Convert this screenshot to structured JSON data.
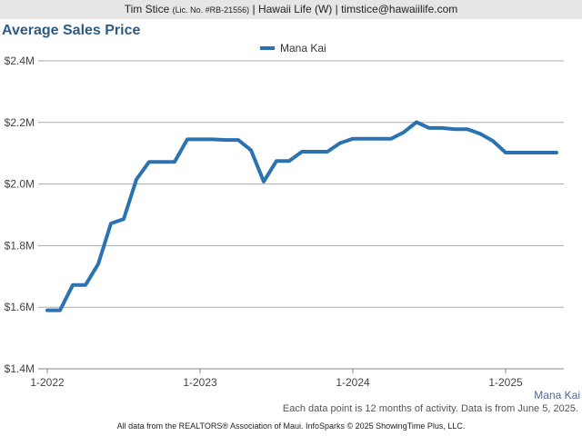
{
  "header": {
    "name": "Tim Stice",
    "license": "(Lic. No. #RB-21556)",
    "rest": "| Hawaii Life (W) | timstice@hawaiilife.com"
  },
  "colors": {
    "series": "#2b72b1",
    "title": "#2d5b84",
    "grid": "#aaaaaa"
  },
  "chart_data": {
    "type": "line",
    "title": "Average Sales Price",
    "xlabel": "",
    "ylabel": "",
    "ylim": [
      1400000,
      2400000
    ],
    "yticks": [
      {
        "value": 2400000,
        "label": "$2.4M"
      },
      {
        "value": 2200000,
        "label": "$2.2M"
      },
      {
        "value": 2000000,
        "label": "$2.0M"
      },
      {
        "value": 1800000,
        "label": "$1.8M"
      },
      {
        "value": 1600000,
        "label": "$1.6M"
      },
      {
        "value": 1400000,
        "label": "$1.4M"
      }
    ],
    "xticks": [
      "1-2022",
      "1-2023",
      "1-2024",
      "1-2025"
    ],
    "x": [
      "2022-01",
      "2022-02",
      "2022-03",
      "2022-04",
      "2022-05",
      "2022-06",
      "2022-07",
      "2022-08",
      "2022-09",
      "2022-10",
      "2022-11",
      "2022-12",
      "2023-01",
      "2023-02",
      "2023-03",
      "2023-04",
      "2023-05",
      "2023-06",
      "2023-07",
      "2023-08",
      "2023-09",
      "2023-10",
      "2023-11",
      "2023-12",
      "2024-01",
      "2024-02",
      "2024-03",
      "2024-04",
      "2024-05",
      "2024-06",
      "2024-07",
      "2024-08",
      "2024-09",
      "2024-10",
      "2024-11",
      "2024-12",
      "2025-01",
      "2025-02",
      "2025-03",
      "2025-04",
      "2025-05"
    ],
    "series": [
      {
        "name": "Mana Kai",
        "values": [
          1590000,
          1590000,
          1672000,
          1672000,
          1740000,
          1872000,
          1886000,
          2015000,
          2072000,
          2072000,
          2072000,
          2145000,
          2145000,
          2145000,
          2143000,
          2143000,
          2110000,
          2008000,
          2075000,
          2075000,
          2105000,
          2105000,
          2105000,
          2133000,
          2147000,
          2147000,
          2147000,
          2147000,
          2168000,
          2201000,
          2182000,
          2182000,
          2178000,
          2178000,
          2163000,
          2140000,
          2102000,
          2102000,
          2102000,
          2102000,
          2102000
        ]
      }
    ],
    "legend_position": "top-center",
    "grid": true
  },
  "footnote": "Each data point is 12 months of activity. Data is from June 5, 2025.",
  "series_label": "Mana Kai",
  "copyright": "All data from the REALTORS® Association of Maui. InfoSparks © 2025 ShowingTime Plus, LLC."
}
